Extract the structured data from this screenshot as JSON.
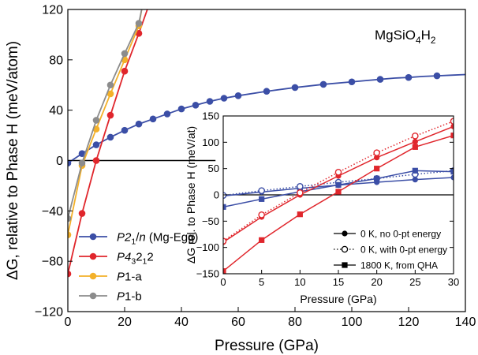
{
  "chart_data": [
    {
      "type": "line",
      "title": "MgSiO4H2",
      "title_parts": [
        {
          "text": "MgSiO",
          "sub": false
        },
        {
          "text": "4",
          "sub": true
        },
        {
          "text": "H",
          "sub": false
        },
        {
          "text": "2",
          "sub": true
        }
      ],
      "xlabel": "Pressure (GPa)",
      "ylabel": "ΔG, relative to Phase H (meV/atom)",
      "xlim": [
        0,
        140
      ],
      "ylim": [
        -120,
        120
      ],
      "xticks": [
        0,
        20,
        40,
        60,
        80,
        100,
        120,
        140
      ],
      "yticks": [
        -120,
        -80,
        -40,
        0,
        40,
        80,
        120
      ],
      "xtick_labels": [
        "0",
        "20",
        "40",
        "60",
        "80",
        "100",
        "120",
        "140"
      ],
      "ytick_labels": [
        "−120",
        "−80",
        "−40",
        "0",
        "40",
        "80",
        "120"
      ],
      "zero_line": {
        "y": 0,
        "x_range": [
          0,
          52
        ]
      },
      "legend_position": "bottom-left",
      "series": [
        {
          "name": "P2₁/n (Mg-Egg)",
          "legend": [
            {
              "text": "P2",
              "italic": true,
              "sub": false
            },
            {
              "text": "1",
              "italic": false,
              "sub": true
            },
            {
              "text": "/",
              "italic": false,
              "sub": false
            },
            {
              "text": "n",
              "italic": true,
              "sub": false
            },
            {
              "text": " (Mg-Egg)",
              "italic": false,
              "sub": false
            }
          ],
          "color": "#3b4ea6",
          "x": [
            0,
            5,
            10,
            15,
            20,
            25,
            30,
            35,
            40,
            45,
            50,
            55,
            60,
            70,
            80,
            90,
            100,
            105,
            110,
            115,
            120,
            125,
            130,
            135,
            140
          ],
          "y": [
            -2,
            5.5,
            12.5,
            18.5,
            24,
            29,
            33,
            37,
            41,
            44,
            47,
            49.5,
            51.5,
            55,
            58,
            60.5,
            62.5,
            63.5,
            64.5,
            65.5,
            66,
            66.8,
            67.3,
            67.8,
            68.3
          ],
          "markers": [
            true,
            true,
            true,
            true,
            true,
            true,
            true,
            true,
            true,
            true,
            true,
            true,
            true,
            true,
            true,
            true,
            true,
            false,
            true,
            false,
            true,
            false,
            true,
            false,
            false
          ]
        },
        {
          "name": "P4₃2₁2",
          "legend": [
            {
              "text": "P4",
              "italic": true,
              "sub": false
            },
            {
              "text": "3",
              "italic": false,
              "sub": true
            },
            {
              "text": "2",
              "italic": false,
              "sub": false
            },
            {
              "text": "1",
              "italic": false,
              "sub": true
            },
            {
              "text": "2",
              "italic": false,
              "sub": false
            }
          ],
          "color": "#e0262c",
          "x": [
            0,
            5,
            10,
            15,
            20,
            25,
            28
          ],
          "y": [
            -90,
            -42,
            0,
            36,
            71,
            101,
            120
          ],
          "markers": [
            true,
            true,
            true,
            true,
            true,
            true,
            false
          ]
        },
        {
          "name": "P1-a",
          "legend": [
            {
              "text": "P",
              "italic": true,
              "sub": false
            },
            {
              "text": "1-a",
              "italic": false,
              "sub": false
            }
          ],
          "color": "#f3b12a",
          "x": [
            0,
            5,
            10,
            15,
            20,
            25,
            26
          ],
          "y": [
            -59,
            -4,
            25,
            53,
            80,
            107,
            120
          ],
          "markers": [
            true,
            true,
            true,
            true,
            true,
            true,
            false
          ]
        },
        {
          "name": "P1-b",
          "legend": [
            {
              "text": "P",
              "italic": true,
              "sub": false
            },
            {
              "text": "1-b",
              "italic": false,
              "sub": false
            }
          ],
          "color": "#8c8c8c",
          "x": [
            0,
            5,
            10,
            15,
            20,
            25,
            26
          ],
          "y": [
            -46,
            -2,
            32,
            60,
            85,
            109,
            120
          ],
          "markers": [
            true,
            true,
            true,
            true,
            true,
            true,
            false
          ]
        }
      ]
    },
    {
      "type": "line",
      "title": "",
      "xlabel": "Pressure (GPa)",
      "ylabel": "ΔG rel. to Phase H (meV/at)",
      "xlim": [
        0,
        30
      ],
      "ylim": [
        -150,
        150
      ],
      "xticks": [
        0,
        5,
        10,
        15,
        20,
        25,
        30
      ],
      "yticks": [
        -150,
        -100,
        -50,
        0,
        50,
        100,
        150
      ],
      "xtick_labels": [
        "0",
        "5",
        "10",
        "15",
        "20",
        "25",
        "30"
      ],
      "ytick_labels": [
        "−150",
        "−100",
        "−50",
        "0",
        "50",
        "100",
        "150"
      ],
      "legend_position": "bottom-right",
      "legend_entries": [
        {
          "label": "0 K, no 0-pt energy",
          "marker": "filled-circle",
          "line": "solid"
        },
        {
          "label": "0 K, with 0-pt energy",
          "marker": "open-circle",
          "line": "dotted"
        },
        {
          "label": "1800 K, from QHA",
          "marker": "filled-square",
          "line": "solid"
        }
      ],
      "x": [
        0,
        5,
        10,
        15,
        20,
        25,
        30
      ],
      "series": [
        {
          "name": "",
          "color": "#3b4ea6",
          "style": "solid",
          "marker": "filled-circle",
          "y": [
            -2,
            5.5,
            12.5,
            18.5,
            24,
            29,
            33
          ]
        },
        {
          "name": "",
          "color": "#3b4ea6",
          "style": "dotted",
          "marker": "open-circle",
          "y": [
            -1,
            8,
            16,
            24,
            31,
            39,
            46
          ]
        },
        {
          "name": "",
          "color": "#3b4ea6",
          "style": "solid",
          "marker": "filled-square",
          "y": [
            -23,
            -8,
            6,
            19,
            31,
            46,
            44
          ]
        },
        {
          "name": "",
          "color": "#e0262c",
          "style": "solid",
          "marker": "filled-circle",
          "y": [
            -90,
            -42,
            0,
            36,
            71,
            101,
            130
          ]
        },
        {
          "name": "",
          "color": "#e0262c",
          "style": "dotted",
          "marker": "open-circle",
          "y": [
            -88,
            -38,
            4,
            43,
            80,
            112,
            140
          ]
        },
        {
          "name": "",
          "color": "#e0262c",
          "style": "solid",
          "marker": "filled-square",
          "y": [
            -145,
            -86,
            -37,
            6,
            50,
            91,
            113
          ]
        }
      ]
    }
  ]
}
